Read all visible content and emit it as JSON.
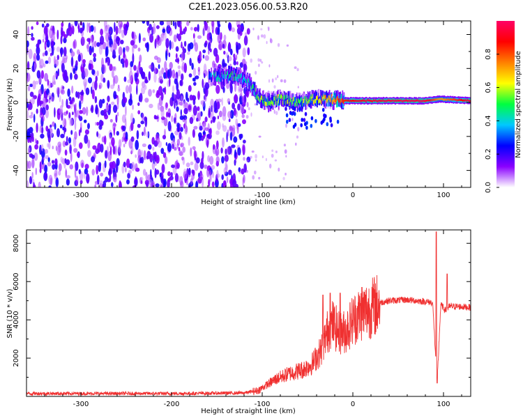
{
  "title": "C2E1.2023.056.00.53.R20",
  "colors": {
    "snr_line": "#f03030",
    "cmap": [
      "#ffffff",
      "#8a00ff",
      "#0000ff",
      "#00c8ff",
      "#00ff40",
      "#ffff00",
      "#ff8000",
      "#ff0000",
      "#ff0066"
    ]
  },
  "chart_data": [
    {
      "type": "heatmap",
      "xlabel": "Height of straight line (km)",
      "ylabel": "Frequency (Hz)",
      "xlim": [
        -360,
        130
      ],
      "ylim": [
        -50,
        48
      ],
      "x_ticks": [
        -300,
        -200,
        -100,
        0,
        100
      ],
      "y_ticks": [
        -40,
        -20,
        0,
        20,
        40
      ],
      "colorbar": {
        "label": "Normalized spectral amplitude",
        "range": [
          0,
          1
        ],
        "ticks": [
          "0.0",
          "0.2",
          "0.4",
          "0.6",
          "0.8"
        ],
        "tick_values": [
          0.0,
          0.2,
          0.4,
          0.6,
          0.8
        ]
      },
      "features": [
        {
          "description": "noise",
          "x_range": [
            -360,
            -115
          ],
          "freq_range": [
            -50,
            48
          ],
          "amplitude": 0.2
        },
        {
          "description": "signal track",
          "x": [
            -155,
            -130,
            -115,
            -105,
            -95,
            -80,
            -60,
            -45,
            -30,
            -10,
            0,
            40,
            80,
            95,
            130
          ],
          "freq": [
            15,
            16,
            12,
            3,
            0,
            2,
            0,
            2,
            2,
            1,
            1,
            1,
            1,
            2,
            1
          ],
          "amplitude": [
            0.35,
            0.45,
            0.4,
            0.5,
            0.55,
            0.55,
            0.5,
            0.6,
            0.7,
            0.85,
            0.9,
            0.95,
            0.95,
            0.7,
            0.95
          ]
        }
      ]
    },
    {
      "type": "line",
      "xlabel": "Height of straight line (km)",
      "ylabel": "SNR (10 * v/v)",
      "xlim": [
        -360,
        130
      ],
      "ylim": [
        0,
        8700
      ],
      "x_ticks": [
        -300,
        -200,
        -100,
        0,
        100
      ],
      "y_ticks": [
        2000,
        4000,
        6000,
        8000
      ],
      "x": [
        -360,
        -300,
        -200,
        -120,
        -105,
        -95,
        -85,
        -70,
        -55,
        -45,
        -35,
        -28,
        -22,
        -15,
        -8,
        0,
        10,
        20,
        30,
        40,
        60,
        80,
        88,
        93,
        97,
        102,
        107,
        115,
        130
      ],
      "y": [
        150,
        150,
        150,
        180,
        300,
        600,
        900,
        1200,
        1400,
        1700,
        2400,
        3400,
        3800,
        3300,
        3400,
        4000,
        4400,
        4600,
        4900,
        5000,
        5050,
        4950,
        4900,
        700,
        4800,
        4500,
        4700,
        4700,
        4650
      ],
      "spikes": [
        {
          "x": -33,
          "y": 5300
        },
        {
          "x": -25,
          "y": 5400
        },
        {
          "x": -14,
          "y": 5400
        },
        {
          "x": 10,
          "y": 5700
        },
        {
          "x": 93,
          "y": 8600
        },
        {
          "x": 104,
          "y": 6400
        }
      ]
    }
  ]
}
